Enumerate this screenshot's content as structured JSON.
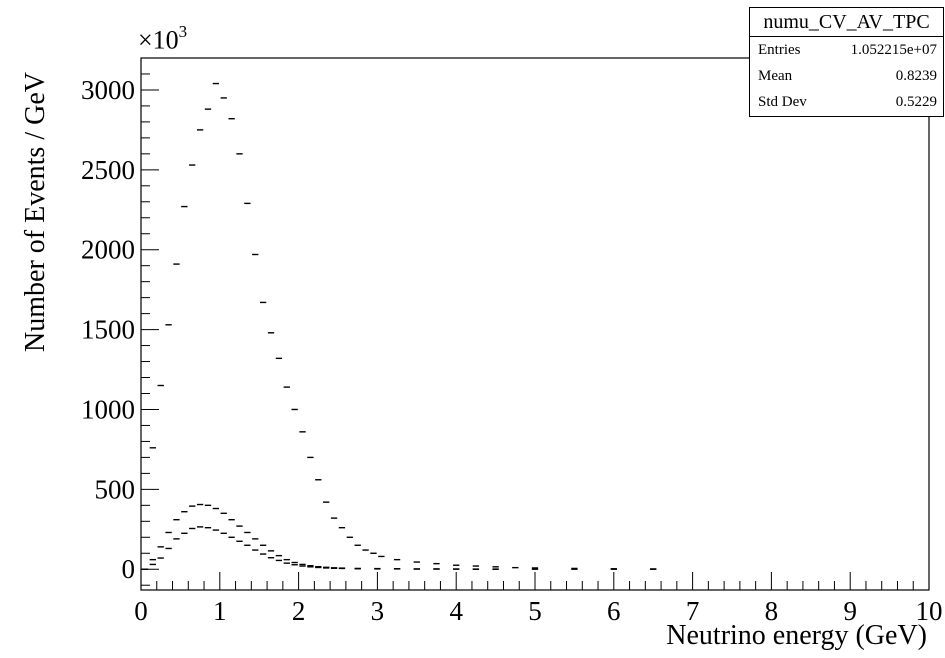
{
  "chart_data": {
    "type": "histogram",
    "xlabel": "Neutrino energy (GeV)",
    "ylabel": "Number of Events / GeV",
    "y_multiplier": "×10",
    "y_multiplier_exp": "3",
    "xlim": [
      0,
      10
    ],
    "ylim": [
      -130,
      3200
    ],
    "x_ticks": [
      0,
      1,
      2,
      3,
      4,
      5,
      6,
      7,
      8,
      9,
      10
    ],
    "y_ticks": [
      0,
      500,
      1000,
      1500,
      2000,
      2500,
      3000
    ],
    "grid": false,
    "stats": {
      "name": "numu_CV_AV_TPC",
      "rows": [
        {
          "label": "Entries",
          "value": "1.052215e+07"
        },
        {
          "label": "Mean",
          "value": "0.8239"
        },
        {
          "label": "Std Dev",
          "value": "0.5229"
        }
      ]
    },
    "series": [
      {
        "x": [
          0.05,
          0.15,
          0.25,
          0.35,
          0.45,
          0.55,
          0.65,
          0.75,
          0.85,
          0.95,
          1.05,
          1.15,
          1.25,
          1.35,
          1.45,
          1.55,
          1.65,
          1.75,
          1.85,
          1.95,
          2.05,
          2.15,
          2.25,
          2.35,
          2.45,
          2.55,
          2.65,
          2.75,
          2.85,
          2.95,
          3.05,
          3.25,
          3.5,
          3.75,
          4.0,
          4.25,
          4.5,
          4.75,
          5.0,
          5.5,
          6.0,
          6.5
        ],
        "values": [
          0,
          760,
          1150,
          1530,
          1910,
          2270,
          2530,
          2750,
          2880,
          3040,
          2950,
          2820,
          2600,
          2290,
          1970,
          1670,
          1480,
          1320,
          1140,
          1000,
          860,
          700,
          560,
          420,
          320,
          260,
          200,
          150,
          120,
          100,
          80,
          60,
          45,
          35,
          25,
          20,
          15,
          10,
          8,
          5,
          3,
          2
        ]
      },
      {
        "x": [
          0.05,
          0.15,
          0.25,
          0.35,
          0.45,
          0.55,
          0.65,
          0.75,
          0.85,
          0.95,
          1.05,
          1.15,
          1.25,
          1.35,
          1.45,
          1.55,
          1.65,
          1.75,
          1.85,
          1.95,
          2.05,
          2.15,
          2.25,
          2.35,
          2.45,
          2.55,
          2.75,
          3.0,
          3.25,
          3.5,
          3.75,
          4.0,
          4.25,
          4.5,
          5.0,
          5.5,
          6.0,
          6.5
        ],
        "values": [
          0,
          60,
          140,
          230,
          310,
          360,
          395,
          405,
          400,
          380,
          350,
          310,
          270,
          230,
          190,
          150,
          115,
          85,
          60,
          42,
          30,
          22,
          16,
          12,
          9,
          7,
          5,
          4,
          3,
          2,
          2,
          1,
          1,
          1,
          0,
          0,
          0,
          0
        ]
      },
      {
        "x": [
          0.05,
          0.15,
          0.25,
          0.35,
          0.45,
          0.55,
          0.65,
          0.75,
          0.85,
          0.95,
          1.05,
          1.15,
          1.25,
          1.35,
          1.45,
          1.55,
          1.65,
          1.75,
          1.85,
          1.95,
          2.05,
          2.15,
          2.25,
          2.35,
          2.45,
          2.55,
          2.75,
          3.0,
          3.25,
          3.5,
          3.75,
          4.0,
          4.25,
          4.5
        ],
        "values": [
          0,
          30,
          70,
          130,
          190,
          225,
          255,
          265,
          260,
          245,
          225,
          200,
          175,
          150,
          120,
          95,
          72,
          55,
          38,
          28,
          20,
          15,
          11,
          8,
          6,
          5,
          3,
          2,
          2,
          1,
          1,
          1,
          0,
          0
        ]
      }
    ]
  }
}
